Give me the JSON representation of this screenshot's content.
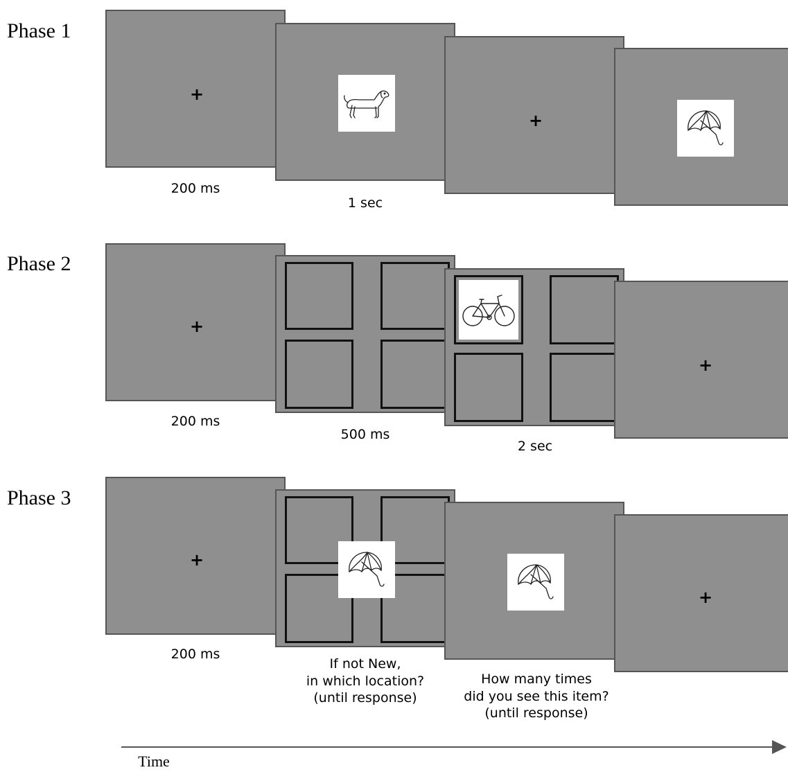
{
  "phases": [
    {
      "label": "Phase 1",
      "captions": [
        "200 ms",
        "1 sec"
      ]
    },
    {
      "label": "Phase 2",
      "captions": [
        "200 ms",
        "500 ms",
        "2 sec"
      ]
    },
    {
      "label": "Phase 3",
      "captions": [
        "200 ms",
        "If not New,\nin which location?\n(until response)",
        "How many times\ndid you see this item?\n(until response)"
      ]
    }
  ],
  "fixation": "+",
  "time_label": "Time",
  "icons": [
    "dog-picture",
    "umbrella-picture",
    "bicycle-picture"
  ]
}
